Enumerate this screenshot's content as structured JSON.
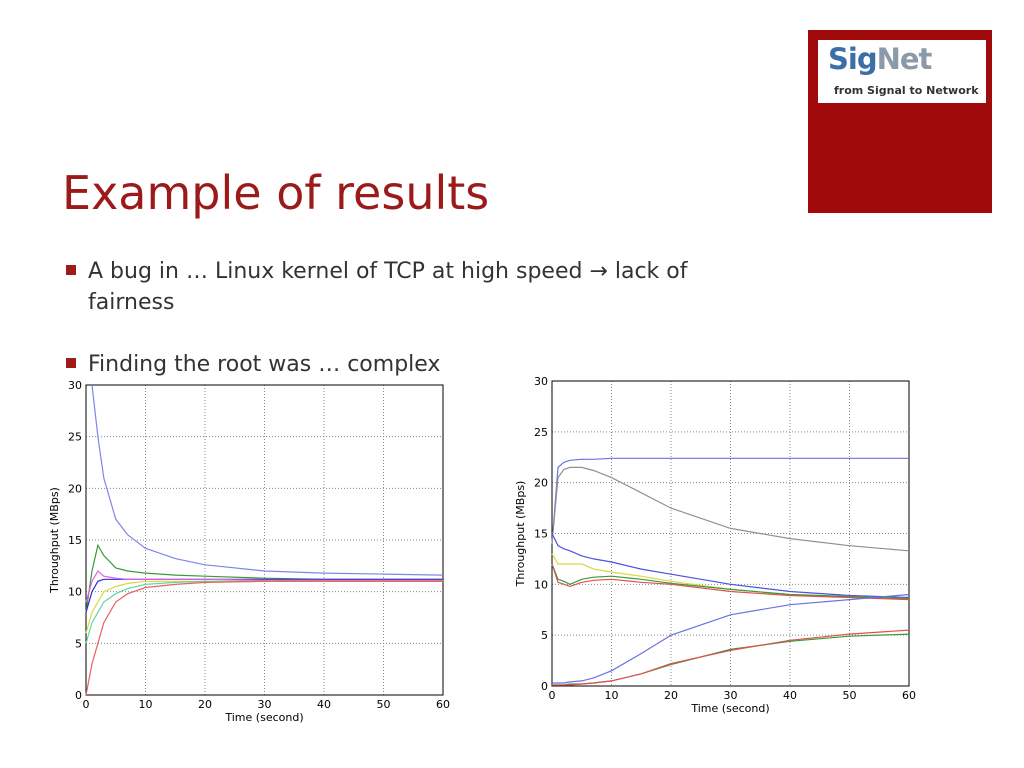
{
  "title": "Example of results",
  "bullets": [
    "A bug in … Linux kernel of TCP at high speed → lack of fairness",
    "Finding the root was … complex"
  ],
  "logo": {
    "brand_a": "Sig",
    "brand_b": "Net",
    "tagline": "from Signal to Network"
  },
  "chart_data": [
    {
      "type": "line",
      "x_label": "Time (second)",
      "y_label": "Throughput (MBps)",
      "x": [
        0,
        1,
        2,
        3,
        5,
        7,
        10,
        15,
        20,
        30,
        40,
        50,
        60
      ],
      "xlim": [
        0,
        60
      ],
      "ylim": [
        0,
        30
      ],
      "xticks": [
        0,
        10,
        20,
        30,
        40,
        50,
        60
      ],
      "yticks": [
        0,
        5,
        10,
        15,
        20,
        25,
        30
      ],
      "grid": true,
      "series": [
        {
          "color": "#7f86e8",
          "values": [
            null,
            30,
            25,
            21,
            17,
            15.5,
            14.2,
            13.2,
            12.6,
            12,
            11.8,
            11.7,
            11.6
          ]
        },
        {
          "color": "#3a9a3a",
          "values": [
            8,
            12,
            14.5,
            13.5,
            12.3,
            12,
            11.8,
            11.6,
            11.5,
            11.3,
            11.2,
            11.2,
            11.2
          ]
        },
        {
          "color": "#2a2ad0",
          "values": [
            8,
            10,
            11,
            11.2,
            11.2,
            11.2,
            11.2,
            11.2,
            11.2,
            11.2,
            11.2,
            11.2,
            11.2
          ]
        },
        {
          "color": "#e060e0",
          "values": [
            9,
            11,
            12,
            11.5,
            11.3,
            11.2,
            11.2,
            11.2,
            11.2,
            11.1,
            11.1,
            11.1,
            11.1
          ]
        },
        {
          "color": "#d8d840",
          "values": [
            6,
            8,
            9,
            10,
            10.5,
            10.8,
            11,
            11,
            11,
            11,
            11,
            11,
            11
          ]
        },
        {
          "color": "#60d8a0",
          "values": [
            5,
            7,
            8,
            9,
            9.8,
            10.3,
            10.7,
            10.9,
            11,
            11,
            11,
            11,
            11
          ]
        },
        {
          "color": "#e86060",
          "values": [
            0,
            3,
            5,
            7,
            9,
            9.8,
            10.4,
            10.7,
            10.9,
            11,
            11,
            11,
            11
          ]
        }
      ]
    },
    {
      "type": "line",
      "x_label": "Time (second)",
      "y_label": "Throughput (MBps)",
      "x": [
        0,
        1,
        2,
        3,
        5,
        7,
        10,
        15,
        20,
        30,
        40,
        50,
        60
      ],
      "xlim": [
        0,
        60
      ],
      "ylim": [
        0,
        30
      ],
      "xticks": [
        0,
        10,
        20,
        30,
        40,
        50,
        60
      ],
      "yticks": [
        0,
        5,
        10,
        15,
        20,
        25,
        30
      ],
      "grid": true,
      "series": [
        {
          "color": "#6a72e0",
          "values": [
            14,
            21.5,
            22,
            22.2,
            22.3,
            22.3,
            22.4,
            22.4,
            22.4,
            22.4,
            22.4,
            22.4,
            22.4
          ]
        },
        {
          "color": "#909090",
          "values": [
            14,
            20.5,
            21.3,
            21.5,
            21.5,
            21.2,
            20.5,
            19,
            17.5,
            15.5,
            14.5,
            13.8,
            13.3
          ]
        },
        {
          "color": "#4a52e0",
          "values": [
            15,
            13.8,
            13.5,
            13.3,
            12.8,
            12.5,
            12.2,
            11.5,
            11,
            10,
            9.3,
            8.9,
            8.7
          ]
        },
        {
          "color": "#d8d840",
          "values": [
            13,
            12,
            12,
            12,
            12,
            11.5,
            11.2,
            10.8,
            10.3,
            9.5,
            9,
            8.8,
            8.6
          ]
        },
        {
          "color": "#3a9a3a",
          "values": [
            12,
            10.5,
            10.3,
            10,
            10.5,
            10.7,
            10.8,
            10.5,
            10.1,
            9.5,
            9,
            8.8,
            8.6
          ]
        },
        {
          "color": "#e05050",
          "values": [
            12,
            10.2,
            10,
            9.8,
            10.2,
            10.4,
            10.5,
            10.2,
            10,
            9.3,
            8.9,
            8.7,
            8.5
          ]
        },
        {
          "color": "#6a72e0",
          "values": [
            0.3,
            0.3,
            0.3,
            0.4,
            0.5,
            0.8,
            1.5,
            3.2,
            5,
            7,
            8,
            8.5,
            9
          ]
        },
        {
          "color": "#3a9a3a",
          "values": [
            0.1,
            0.1,
            0.1,
            0.2,
            0.2,
            0.3,
            0.5,
            1.2,
            2.1,
            3.6,
            4.4,
            4.9,
            5.1
          ]
        },
        {
          "color": "#e05050",
          "values": [
            0.1,
            0.1,
            0.1,
            0.1,
            0.2,
            0.3,
            0.5,
            1.2,
            2.2,
            3.5,
            4.5,
            5.1,
            5.5
          ]
        }
      ]
    }
  ]
}
